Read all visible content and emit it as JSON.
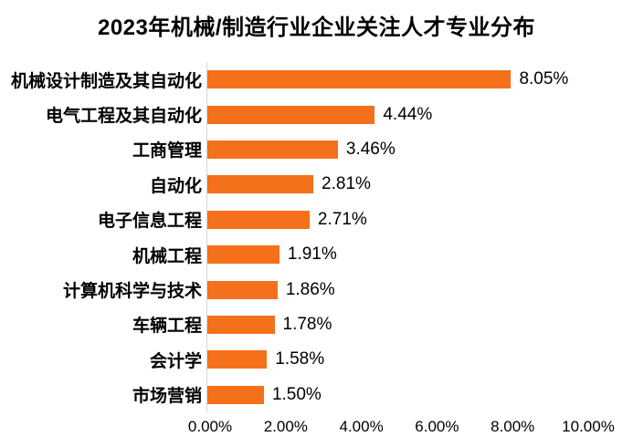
{
  "chart_data": {
    "type": "bar",
    "orientation": "horizontal",
    "title": "2023年机械/制造行业企业关注人才专业分布",
    "categories": [
      "机械设计制造及其自动化",
      "电气工程及其自动化",
      "工商管理",
      "自动化",
      "电子信息工程",
      "机械工程",
      "计算机科学与技术",
      "车辆工程",
      "会计学",
      "市场营销"
    ],
    "values": [
      8.05,
      4.44,
      3.46,
      2.81,
      2.71,
      1.91,
      1.86,
      1.78,
      1.58,
      1.5
    ],
    "value_labels": [
      "8.05%",
      "4.44%",
      "3.46%",
      "2.81%",
      "2.71%",
      "1.91%",
      "1.86%",
      "1.78%",
      "1.58%",
      "1.50%"
    ],
    "x_ticks": [
      "0.00%",
      "2.00%",
      "4.00%",
      "6.00%",
      "8.00%",
      "10.00%"
    ],
    "xlim": [
      0,
      10
    ],
    "xlabel": "",
    "ylabel": "",
    "grid": "off",
    "legend": "none",
    "bar_color": "#F5701A",
    "axis_line_color": "#D6D6D6",
    "text_color": "#000000"
  }
}
